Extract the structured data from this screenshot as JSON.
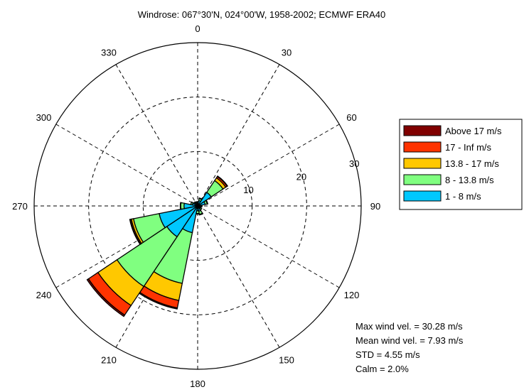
{
  "title": "Windrose: 067°30'N, 024°00'W, 1958-2002; ECMWF ERA40",
  "chart_data": {
    "type": "windrose",
    "direction_labels": [
      "0",
      "30",
      "60",
      "90",
      "120",
      "150",
      "180",
      "210",
      "240",
      "270",
      "300",
      "330"
    ],
    "radial_ticks": [
      10,
      20,
      30
    ],
    "rmax": 30,
    "grid": true,
    "legend_position": "right",
    "speed_bins": [
      {
        "label": "1 - 8  m/s",
        "color": "#00c8ff"
      },
      {
        "label": "8 - 13.8  m/s",
        "color": "#80ff80"
      },
      {
        "label": "13.8 - 17  m/s",
        "color": "#ffc800"
      },
      {
        "label": "17 - Inf  m/s",
        "color": "#ff3300"
      },
      {
        "label": "Above 17  m/s",
        "color": "#800000"
      }
    ],
    "sectors": [
      {
        "dir": 0,
        "values": [
          0.6,
          0.2,
          0.0,
          0.0,
          0.0
        ]
      },
      {
        "dir": 22.5,
        "values": [
          1.0,
          0.4,
          0.1,
          0.0,
          0.0
        ]
      },
      {
        "dir": 45,
        "values": [
          3.0,
          2.6,
          0.6,
          0.3,
          0.1
        ]
      },
      {
        "dir": 67.5,
        "values": [
          1.4,
          0.4,
          0.1,
          0.0,
          0.0
        ]
      },
      {
        "dir": 90,
        "values": [
          0.6,
          0.2,
          0.0,
          0.0,
          0.0
        ]
      },
      {
        "dir": 112.5,
        "values": [
          0.5,
          0.2,
          0.0,
          0.0,
          0.0
        ]
      },
      {
        "dir": 135,
        "values": [
          0.6,
          0.3,
          0.0,
          0.0,
          0.0
        ]
      },
      {
        "dir": 157.5,
        "values": [
          1.0,
          0.6,
          0.1,
          0.0,
          0.0
        ]
      },
      {
        "dir": 180,
        "values": [
          0.9,
          0.5,
          0.1,
          0.0,
          0.0
        ]
      },
      {
        "dir": 202.5,
        "values": [
          5.0,
          9.5,
          3.2,
          1.4,
          0.2
        ]
      },
      {
        "dir": 225,
        "values": [
          6.8,
          11.0,
          4.2,
          2.1,
          0.3
        ]
      },
      {
        "dir": 247.5,
        "values": [
          7.2,
          4.8,
          0.4,
          0.2,
          0.1
        ]
      },
      {
        "dir": 270,
        "values": [
          2.5,
          0.6,
          0.1,
          0.0,
          0.0
        ]
      },
      {
        "dir": 292.5,
        "values": [
          1.0,
          0.3,
          0.0,
          0.0,
          0.0
        ]
      },
      {
        "dir": 315,
        "values": [
          0.7,
          0.2,
          0.0,
          0.0,
          0.0
        ]
      },
      {
        "dir": 337.5,
        "values": [
          0.6,
          0.2,
          0.0,
          0.0,
          0.0
        ]
      }
    ]
  },
  "stats": [
    "Max wind vel. = 30.28 m/s",
    "Mean wind vel. = 7.93 m/s",
    "STD = 4.55 m/s",
    "Calm = 2.0%"
  ]
}
